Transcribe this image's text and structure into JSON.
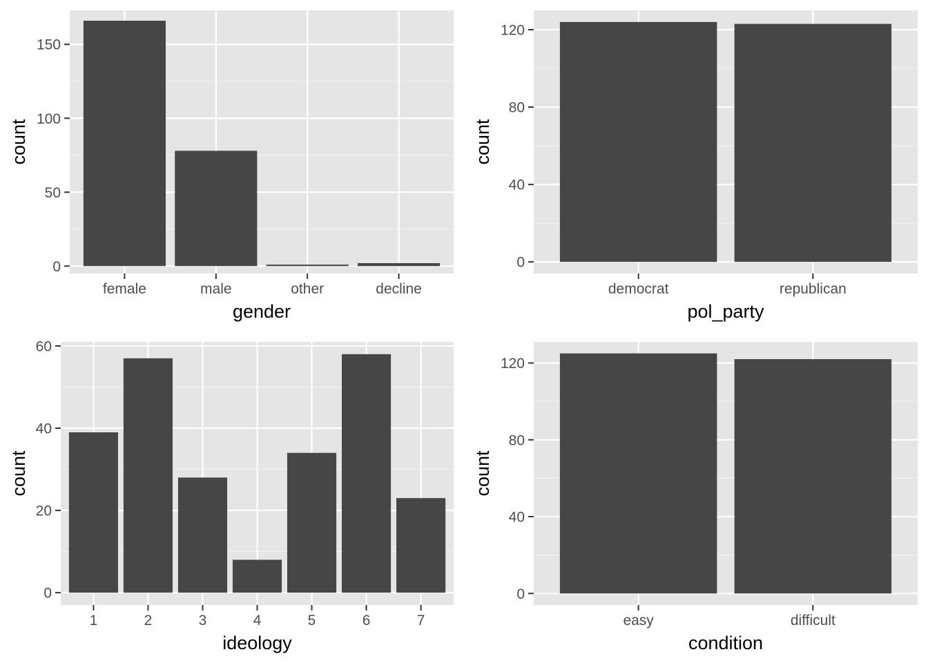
{
  "chart_data": [
    {
      "type": "bar",
      "xlabel": "gender",
      "ylabel": "count",
      "categories": [
        "female",
        "male",
        "other",
        "decline"
      ],
      "values": [
        166,
        78,
        1,
        2
      ],
      "ylim": [
        -5,
        173
      ],
      "yticks": [
        0,
        50,
        100,
        150
      ],
      "grid": true
    },
    {
      "type": "bar",
      "xlabel": "pol_party",
      "ylabel": "count",
      "categories": [
        "democrat",
        "republican"
      ],
      "values": [
        124,
        123
      ],
      "ylim": [
        -6,
        130
      ],
      "yticks": [
        0,
        40,
        80,
        120
      ],
      "grid": true
    },
    {
      "type": "bar",
      "xlabel": "ideology",
      "ylabel": "count",
      "categories": [
        "1",
        "2",
        "3",
        "4",
        "5",
        "6",
        "7"
      ],
      "values": [
        39,
        57,
        28,
        8,
        34,
        58,
        23
      ],
      "ylim": [
        -3,
        61
      ],
      "yticks": [
        0,
        20,
        40,
        60
      ],
      "grid": true
    },
    {
      "type": "bar",
      "xlabel": "condition",
      "ylabel": "count",
      "categories": [
        "easy",
        "difficult"
      ],
      "values": [
        125,
        122
      ],
      "ylim": [
        -6,
        131
      ],
      "yticks": [
        0,
        40,
        80,
        120
      ],
      "grid": true
    }
  ]
}
